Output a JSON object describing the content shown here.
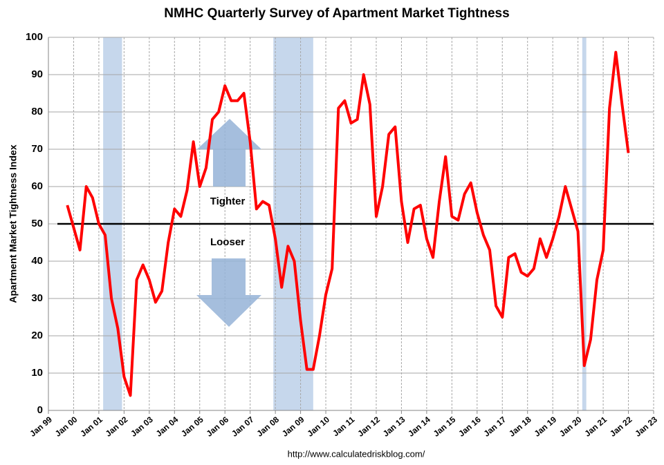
{
  "chart_data": {
    "type": "line",
    "title": "NMHC Quarterly Survey of Apartment Market Tightness",
    "y_label": "Apartment Market Tightness Index",
    "source": "http://www.calculatedriskblog.com/",
    "annotations": [
      "Tighter",
      "Looser"
    ],
    "color": "#ff0000",
    "reference_line": 50,
    "recessions": [
      [
        2001.17,
        2001.92
      ],
      [
        2007.92,
        2009.5
      ],
      [
        2020.17,
        2020.33
      ]
    ],
    "recession_color": "#c6d7ec",
    "grid": true,
    "xlim": [
      1999,
      2023
    ],
    "ylim": [
      0,
      100
    ],
    "yticks": [
      0,
      10,
      20,
      30,
      40,
      50,
      60,
      70,
      80,
      90,
      100
    ],
    "xticks": [
      {
        "value": 1999,
        "label": "Jan 99"
      },
      {
        "value": 2000,
        "label": "Jan 00"
      },
      {
        "value": 2001,
        "label": "Jan 01"
      },
      {
        "value": 2002,
        "label": "Jan 02"
      },
      {
        "value": 2003,
        "label": "Jan 03"
      },
      {
        "value": 2004,
        "label": "Jan 04"
      },
      {
        "value": 2005,
        "label": "Jan 05"
      },
      {
        "value": 2006,
        "label": "Jan 06"
      },
      {
        "value": 2007,
        "label": "Jan 07"
      },
      {
        "value": 2008,
        "label": "Jan 08"
      },
      {
        "value": 2009,
        "label": "Jan 09"
      },
      {
        "value": 2010,
        "label": "Jan 10"
      },
      {
        "value": 2011,
        "label": "Jan 11"
      },
      {
        "value": 2012,
        "label": "Jan 12"
      },
      {
        "value": 2013,
        "label": "Jan 13"
      },
      {
        "value": 2014,
        "label": "Jan 14"
      },
      {
        "value": 2015,
        "label": "Jan 15"
      },
      {
        "value": 2016,
        "label": "Jan 16"
      },
      {
        "value": 2017,
        "label": "Jan 17"
      },
      {
        "value": 2018,
        "label": "Jan 18"
      },
      {
        "value": 2019,
        "label": "Jan 19"
      },
      {
        "value": 2020,
        "label": "Jan 20"
      },
      {
        "value": 2021,
        "label": "Jan 21"
      },
      {
        "value": 2022,
        "label": "Jan 22"
      },
      {
        "value": 2023,
        "label": "Jan 23"
      }
    ],
    "x": [
      1999.75,
      2000,
      2000.25,
      2000.5,
      2000.75,
      2001,
      2001.25,
      2001.5,
      2001.75,
      2002,
      2002.25,
      2002.5,
      2002.75,
      2003,
      2003.25,
      2003.5,
      2003.75,
      2004,
      2004.25,
      2004.5,
      2004.75,
      2005,
      2005.25,
      2005.5,
      2005.75,
      2006,
      2006.25,
      2006.5,
      2006.75,
      2007,
      2007.25,
      2007.5,
      2007.75,
      2008,
      2008.25,
      2008.5,
      2008.75,
      2009,
      2009.25,
      2009.5,
      2009.75,
      2010,
      2010.25,
      2010.5,
      2010.75,
      2011,
      2011.25,
      2011.5,
      2011.75,
      2012,
      2012.25,
      2012.5,
      2012.75,
      2013,
      2013.25,
      2013.5,
      2013.75,
      2014,
      2014.25,
      2014.5,
      2014.75,
      2015,
      2015.25,
      2015.5,
      2015.75,
      2016,
      2016.25,
      2016.5,
      2016.75,
      2017,
      2017.25,
      2017.5,
      2017.75,
      2018,
      2018.25,
      2018.5,
      2018.75,
      2019,
      2019.25,
      2019.5,
      2019.75,
      2020,
      2020.25,
      2020.5,
      2020.75,
      2021,
      2021.25,
      2021.5,
      2021.75,
      2022
    ],
    "values": [
      55,
      49,
      43,
      60,
      57,
      50,
      47,
      30,
      22,
      9,
      4,
      35,
      39,
      35,
      29,
      32,
      45,
      54,
      52,
      59,
      72,
      60,
      65,
      78,
      80,
      87,
      83,
      83,
      85,
      72,
      54,
      56,
      55,
      46,
      33,
      44,
      40,
      24,
      11,
      11,
      20,
      31,
      38,
      81,
      83,
      77,
      78,
      90,
      82,
      52,
      60,
      74,
      76,
      56,
      45,
      54,
      55,
      46,
      41,
      56,
      68,
      52,
      51,
      58,
      61,
      53,
      47,
      43,
      28,
      25,
      41,
      42,
      37,
      36,
      38,
      46,
      41,
      46,
      52,
      60,
      54,
      48,
      12,
      19,
      35,
      43,
      81,
      96,
      82,
      69
    ]
  }
}
